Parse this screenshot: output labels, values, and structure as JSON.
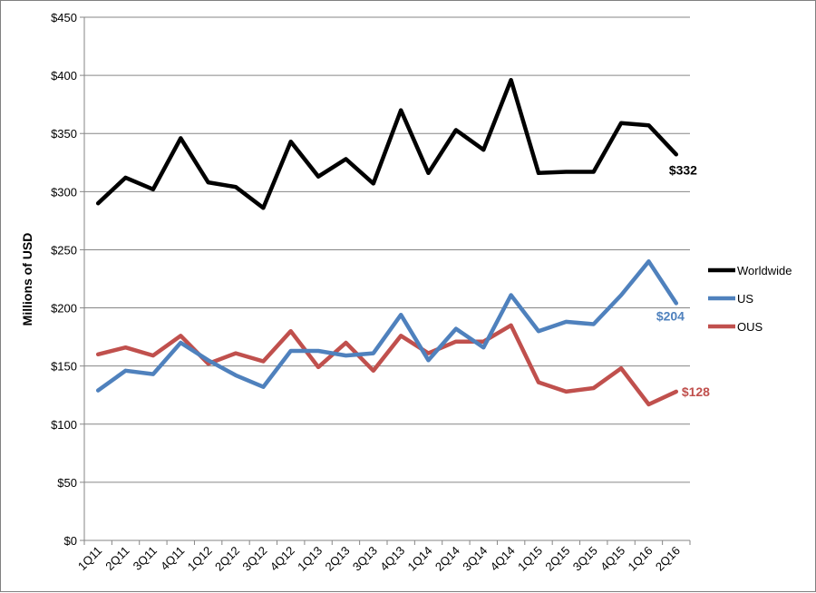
{
  "chart_data": {
    "type": "line",
    "title": "",
    "xlabel": "",
    "ylabel": "Millions of USD",
    "ylim": [
      0,
      450
    ],
    "yticks": [
      "$0",
      "$50",
      "$100",
      "$150",
      "$200",
      "$250",
      "$300",
      "$350",
      "$400",
      "$450"
    ],
    "ytick_values": [
      0,
      50,
      100,
      150,
      200,
      250,
      300,
      350,
      400,
      450
    ],
    "grid": "horizontal",
    "legend_position": "right",
    "categories": [
      "1Q11",
      "2Q11",
      "3Q11",
      "4Q11",
      "1Q12",
      "2Q12",
      "3Q12",
      "4Q12",
      "1Q13",
      "2Q13",
      "3Q13",
      "4Q13",
      "1Q14",
      "2Q14",
      "3Q14",
      "4Q14",
      "1Q15",
      "2Q15",
      "3Q15",
      "4Q15",
      "1Q16",
      "2Q16"
    ],
    "series": [
      {
        "name": "Worldwide",
        "color": "#000000",
        "values": [
          290,
          312,
          302,
          346,
          308,
          304,
          286,
          343,
          313,
          328,
          307,
          370,
          316,
          353,
          336,
          396,
          316,
          317,
          317,
          359,
          357,
          332
        ],
        "end_label": "$332"
      },
      {
        "name": "US",
        "color": "#4F81BD",
        "values": [
          129,
          146,
          143,
          170,
          155,
          142,
          132,
          163,
          163,
          159,
          161,
          194,
          155,
          182,
          166,
          211,
          180,
          188,
          186,
          211,
          240,
          204
        ],
        "end_label": "$204"
      },
      {
        "name": "OUS",
        "color": "#C0504D",
        "values": [
          160,
          166,
          159,
          176,
          152,
          161,
          154,
          180,
          149,
          170,
          146,
          176,
          161,
          171,
          171,
          185,
          136,
          128,
          131,
          148,
          117,
          128
        ],
        "end_label": "$128"
      }
    ]
  }
}
